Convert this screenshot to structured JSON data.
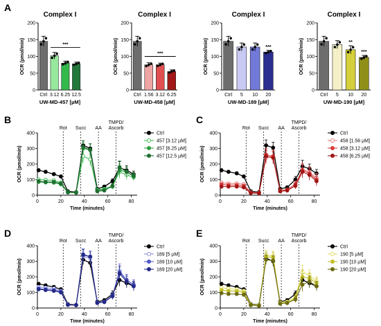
{
  "panel_letters": [
    "A",
    "B",
    "C",
    "D",
    "E"
  ],
  "chart_data": [
    {
      "type": "bar",
      "panel": "A",
      "title": "Complex I",
      "xlabel": "UW-MD-457 [µM]",
      "ylabel": "OCR (pmol/min)",
      "categories": [
        "Ctrl",
        "3.12",
        "6.25",
        "12.5"
      ],
      "values": [
        145,
        102,
        80,
        78
      ],
      "errors": [
        15,
        10,
        6,
        5
      ],
      "colors": [
        "#6d6d6d",
        "#96e89d",
        "#33b84a",
        "#24773a"
      ],
      "ylim": [
        0,
        200
      ],
      "yticks": [
        0,
        50,
        100,
        150,
        200
      ],
      "significance": [
        {
          "text": "***",
          "bracket": [
            1,
            3
          ]
        }
      ]
    },
    {
      "type": "bar",
      "panel": "A",
      "title": "Complex I",
      "xlabel": "UW-MD-458 [µM]",
      "ylabel": "OCR (pmol/min)",
      "categories": [
        "Ctrl",
        "1.56",
        "3.12",
        "6.25"
      ],
      "values": [
        145,
        75,
        75,
        55
      ],
      "errors": [
        15,
        6,
        5,
        5
      ],
      "colors": [
        "#6d6d6d",
        "#f0a5a5",
        "#e05050",
        "#a21818"
      ],
      "ylim": [
        0,
        200
      ],
      "yticks": [
        0,
        50,
        100,
        150,
        200
      ],
      "significance": [
        {
          "text": "***",
          "bracket": [
            1,
            3
          ]
        }
      ]
    },
    {
      "type": "bar",
      "panel": "A",
      "title": "Complex I",
      "xlabel": "UW-MD-189 [µM]",
      "ylabel": "OCR (pmol/min)",
      "categories": [
        "Ctrl",
        "5",
        "10",
        "20"
      ],
      "values": [
        145,
        128,
        128,
        113
      ],
      "errors": [
        15,
        12,
        12,
        5
      ],
      "colors": [
        "#6d6d6d",
        "#c8caf4",
        "#7279d8",
        "#2c2f8f"
      ],
      "ylim": [
        0,
        200
      ],
      "yticks": [
        0,
        50,
        100,
        150,
        200
      ],
      "significance": [
        {
          "text": "***",
          "index": 3
        }
      ]
    },
    {
      "type": "bar",
      "panel": "A",
      "title": "Complex I",
      "xlabel": "UW-MD-190 [µM]",
      "ylabel": "OCR (pmol/min)",
      "categories": [
        "Ctrl",
        "5",
        "10",
        "20"
      ],
      "values": [
        145,
        135,
        120,
        97
      ],
      "errors": [
        15,
        12,
        12,
        6
      ],
      "colors": [
        "#6d6d6d",
        "#f5f0c6",
        "#d4cf3c",
        "#8f8f1a"
      ],
      "ylim": [
        0,
        200
      ],
      "yticks": [
        0,
        50,
        100,
        150,
        200
      ],
      "significance": [
        {
          "text": "**",
          "index": 2
        },
        {
          "text": "***",
          "index": 3
        }
      ]
    },
    {
      "type": "line",
      "panel": "B",
      "xlabel": "Time (minutes)",
      "ylabel": "OCR (pmol/min)",
      "xlim": [
        0,
        85
      ],
      "ylim": [
        0,
        400
      ],
      "xticks": [
        0,
        20,
        40,
        60,
        80
      ],
      "yticks": [
        0,
        100,
        200,
        300,
        400
      ],
      "injections": [
        {
          "label": "Rot",
          "x": 22
        },
        {
          "label": "Succ",
          "x": 37
        },
        {
          "label": "AA",
          "x": 52
        },
        {
          "label": "TMPD/\nAscorb",
          "x": 67
        }
      ],
      "x": [
        1,
        7,
        14,
        20,
        26,
        33,
        39,
        45,
        51,
        57,
        64,
        70,
        76,
        82
      ],
      "series": [
        {
          "name": "Ctrl",
          "color": "#000000",
          "fill": "#000000",
          "values": [
            160,
            150,
            135,
            120,
            25,
            20,
            320,
            300,
            40,
            55,
            90,
            175,
            160,
            135
          ],
          "errors": [
            10,
            10,
            10,
            10,
            5,
            5,
            30,
            30,
            8,
            10,
            15,
            40,
            30,
            20
          ]
        },
        {
          "name": "457 [3.12 µM]",
          "color": "#3dbb52",
          "fill": "#ffffff",
          "values": [
            100,
            98,
            95,
            80,
            20,
            18,
            250,
            230,
            35,
            40,
            60,
            150,
            130,
            115
          ],
          "errors": [
            10,
            10,
            10,
            10,
            5,
            5,
            40,
            40,
            8,
            10,
            15,
            40,
            30,
            20
          ]
        },
        {
          "name": "457 [6.25 µM]",
          "color": "#2e9e42",
          "fill": "#2e9e42",
          "values": [
            85,
            82,
            80,
            70,
            18,
            16,
            300,
            290,
            30,
            35,
            55,
            160,
            150,
            120
          ],
          "errors": [
            10,
            10,
            10,
            10,
            5,
            5,
            40,
            40,
            8,
            10,
            15,
            40,
            30,
            20
          ]
        },
        {
          "name": "457 [12.5 µM]",
          "color": "#1f6e30",
          "fill": "#1f6e30",
          "values": [
            90,
            85,
            85,
            75,
            18,
            16,
            310,
            290,
            25,
            30,
            60,
            180,
            150,
            125
          ],
          "errors": [
            10,
            10,
            10,
            10,
            5,
            5,
            40,
            40,
            8,
            10,
            15,
            40,
            30,
            20
          ]
        }
      ]
    },
    {
      "type": "line",
      "panel": "C",
      "xlabel": "Time (minutes)",
      "ylabel": "OCR (pmol/min)",
      "xlim": [
        0,
        85
      ],
      "ylim": [
        0,
        400
      ],
      "xticks": [
        0,
        20,
        40,
        60,
        80
      ],
      "yticks": [
        0,
        100,
        200,
        300,
        400
      ],
      "injections": [
        {
          "label": "Rot",
          "x": 22
        },
        {
          "label": "Succ",
          "x": 37
        },
        {
          "label": "AA",
          "x": 52
        },
        {
          "label": "TMPD/\nAscorb",
          "x": 67
        }
      ],
      "x": [
        1,
        7,
        14,
        20,
        26,
        33,
        39,
        45,
        51,
        57,
        64,
        70,
        76,
        82
      ],
      "series": [
        {
          "name": "Ctrl",
          "color": "#000000",
          "fill": "#000000",
          "values": [
            160,
            150,
            140,
            120,
            25,
            20,
            320,
            305,
            40,
            50,
            100,
            185,
            170,
            140
          ],
          "errors": [
            10,
            10,
            10,
            10,
            5,
            5,
            35,
            35,
            8,
            10,
            20,
            40,
            30,
            25
          ]
        },
        {
          "name": "458 [1.56 µM]",
          "color": "#e07b7b",
          "fill": "#ffffff",
          "values": [
            80,
            75,
            75,
            70,
            18,
            16,
            240,
            250,
            30,
            35,
            70,
            165,
            150,
            110
          ],
          "errors": [
            10,
            10,
            10,
            10,
            5,
            5,
            40,
            40,
            8,
            10,
            20,
            40,
            35,
            30
          ]
        },
        {
          "name": "458 [3.12 µM]",
          "color": "#d63c3c",
          "fill": "#d63c3c",
          "values": [
            70,
            65,
            65,
            60,
            16,
            14,
            260,
            250,
            28,
            35,
            70,
            160,
            140,
            100
          ],
          "errors": [
            10,
            10,
            10,
            10,
            5,
            5,
            40,
            40,
            8,
            10,
            20,
            40,
            35,
            30
          ]
        },
        {
          "name": "458 [6.25 µM]",
          "color": "#a31515",
          "fill": "#a31515",
          "values": [
            55,
            55,
            55,
            50,
            14,
            12,
            250,
            240,
            25,
            30,
            60,
            150,
            130,
            90
          ],
          "errors": [
            10,
            10,
            10,
            10,
            5,
            5,
            40,
            40,
            8,
            10,
            20,
            40,
            35,
            30
          ]
        }
      ]
    },
    {
      "type": "line",
      "panel": "D",
      "xlabel": "Time (minutes)",
      "ylabel": "OCR (pmol/min)",
      "xlim": [
        0,
        85
      ],
      "ylim": [
        0,
        400
      ],
      "xticks": [
        0,
        20,
        40,
        60,
        80
      ],
      "yticks": [
        0,
        100,
        200,
        300,
        400
      ],
      "injections": [
        {
          "label": "Rot",
          "x": 22
        },
        {
          "label": "Succ",
          "x": 37
        },
        {
          "label": "AA",
          "x": 52
        },
        {
          "label": "TMPD/\nAscorb",
          "x": 67
        }
      ],
      "x": [
        1,
        7,
        14,
        20,
        26,
        33,
        39,
        45,
        51,
        57,
        64,
        70,
        76,
        82
      ],
      "series": [
        {
          "name": "Ctrl",
          "color": "#000000",
          "fill": "#000000",
          "values": [
            155,
            145,
            135,
            120,
            25,
            20,
            310,
            290,
            40,
            50,
            90,
            180,
            160,
            140
          ],
          "errors": [
            10,
            10,
            10,
            10,
            5,
            5,
            30,
            30,
            8,
            10,
            20,
            40,
            30,
            25
          ]
        },
        {
          "name": "189 [5 µM]",
          "color": "#8a8fe0",
          "fill": "#ffffff",
          "values": [
            135,
            130,
            125,
            110,
            22,
            18,
            330,
            320,
            35,
            40,
            80,
            240,
            180,
            150
          ],
          "errors": [
            10,
            10,
            10,
            10,
            5,
            5,
            35,
            35,
            8,
            10,
            20,
            45,
            35,
            30
          ]
        },
        {
          "name": "189 [10 µM]",
          "color": "#5058c8",
          "fill": "#5058c8",
          "values": [
            125,
            120,
            115,
            105,
            20,
            18,
            345,
            330,
            35,
            40,
            80,
            230,
            180,
            150
          ],
          "errors": [
            10,
            10,
            10,
            10,
            5,
            5,
            35,
            35,
            8,
            10,
            20,
            45,
            35,
            30
          ]
        },
        {
          "name": "189 [20 µM]",
          "color": "#242a86",
          "fill": "#242a86",
          "values": [
            120,
            115,
            110,
            100,
            20,
            18,
            340,
            330,
            32,
            38,
            75,
            220,
            170,
            140
          ],
          "errors": [
            10,
            10,
            10,
            10,
            5,
            5,
            35,
            35,
            8,
            10,
            20,
            45,
            35,
            30
          ]
        }
      ]
    },
    {
      "type": "line",
      "panel": "E",
      "xlabel": "Time (minutes)",
      "ylabel": "OCR (pmol/min)",
      "xlim": [
        0,
        85
      ],
      "ylim": [
        0,
        400
      ],
      "xticks": [
        0,
        20,
        40,
        60,
        80
      ],
      "yticks": [
        0,
        100,
        200,
        300,
        400
      ],
      "injections": [
        {
          "label": "Rot",
          "x": 22
        },
        {
          "label": "Succ",
          "x": 37
        },
        {
          "label": "AA",
          "x": 52
        },
        {
          "label": "TMPD/\nAscorb",
          "x": 67
        }
      ],
      "x": [
        1,
        7,
        14,
        20,
        26,
        33,
        39,
        45,
        51,
        57,
        64,
        70,
        76,
        82
      ],
      "series": [
        {
          "name": "Ctrl",
          "color": "#000000",
          "fill": "#000000",
          "values": [
            155,
            145,
            135,
            120,
            25,
            20,
            320,
            300,
            40,
            50,
            90,
            180,
            160,
            140
          ],
          "errors": [
            10,
            10,
            10,
            10,
            5,
            5,
            30,
            30,
            8,
            10,
            20,
            40,
            30,
            25
          ]
        },
        {
          "name": "190 [5 µM]",
          "color": "#e0dc5a",
          "fill": "#ffffff",
          "values": [
            130,
            125,
            120,
            110,
            22,
            18,
            340,
            335,
            35,
            40,
            70,
            230,
            210,
            170
          ],
          "errors": [
            10,
            10,
            10,
            10,
            5,
            5,
            30,
            30,
            8,
            10,
            20,
            45,
            35,
            30
          ]
        },
        {
          "name": "190 [10 µM]",
          "color": "#c2be28",
          "fill": "#c2be28",
          "values": [
            115,
            110,
            108,
            100,
            20,
            16,
            330,
            325,
            30,
            35,
            60,
            200,
            190,
            160
          ],
          "errors": [
            10,
            10,
            10,
            10,
            5,
            5,
            30,
            30,
            8,
            10,
            20,
            45,
            35,
            30
          ]
        },
        {
          "name": "190 [20 µM]",
          "color": "#6d6b12",
          "fill": "#6d6b12",
          "values": [
            95,
            90,
            90,
            85,
            18,
            14,
            310,
            305,
            28,
            32,
            55,
            150,
            170,
            140
          ],
          "errors": [
            10,
            10,
            10,
            10,
            5,
            5,
            30,
            30,
            8,
            10,
            20,
            45,
            35,
            30
          ]
        }
      ]
    }
  ]
}
